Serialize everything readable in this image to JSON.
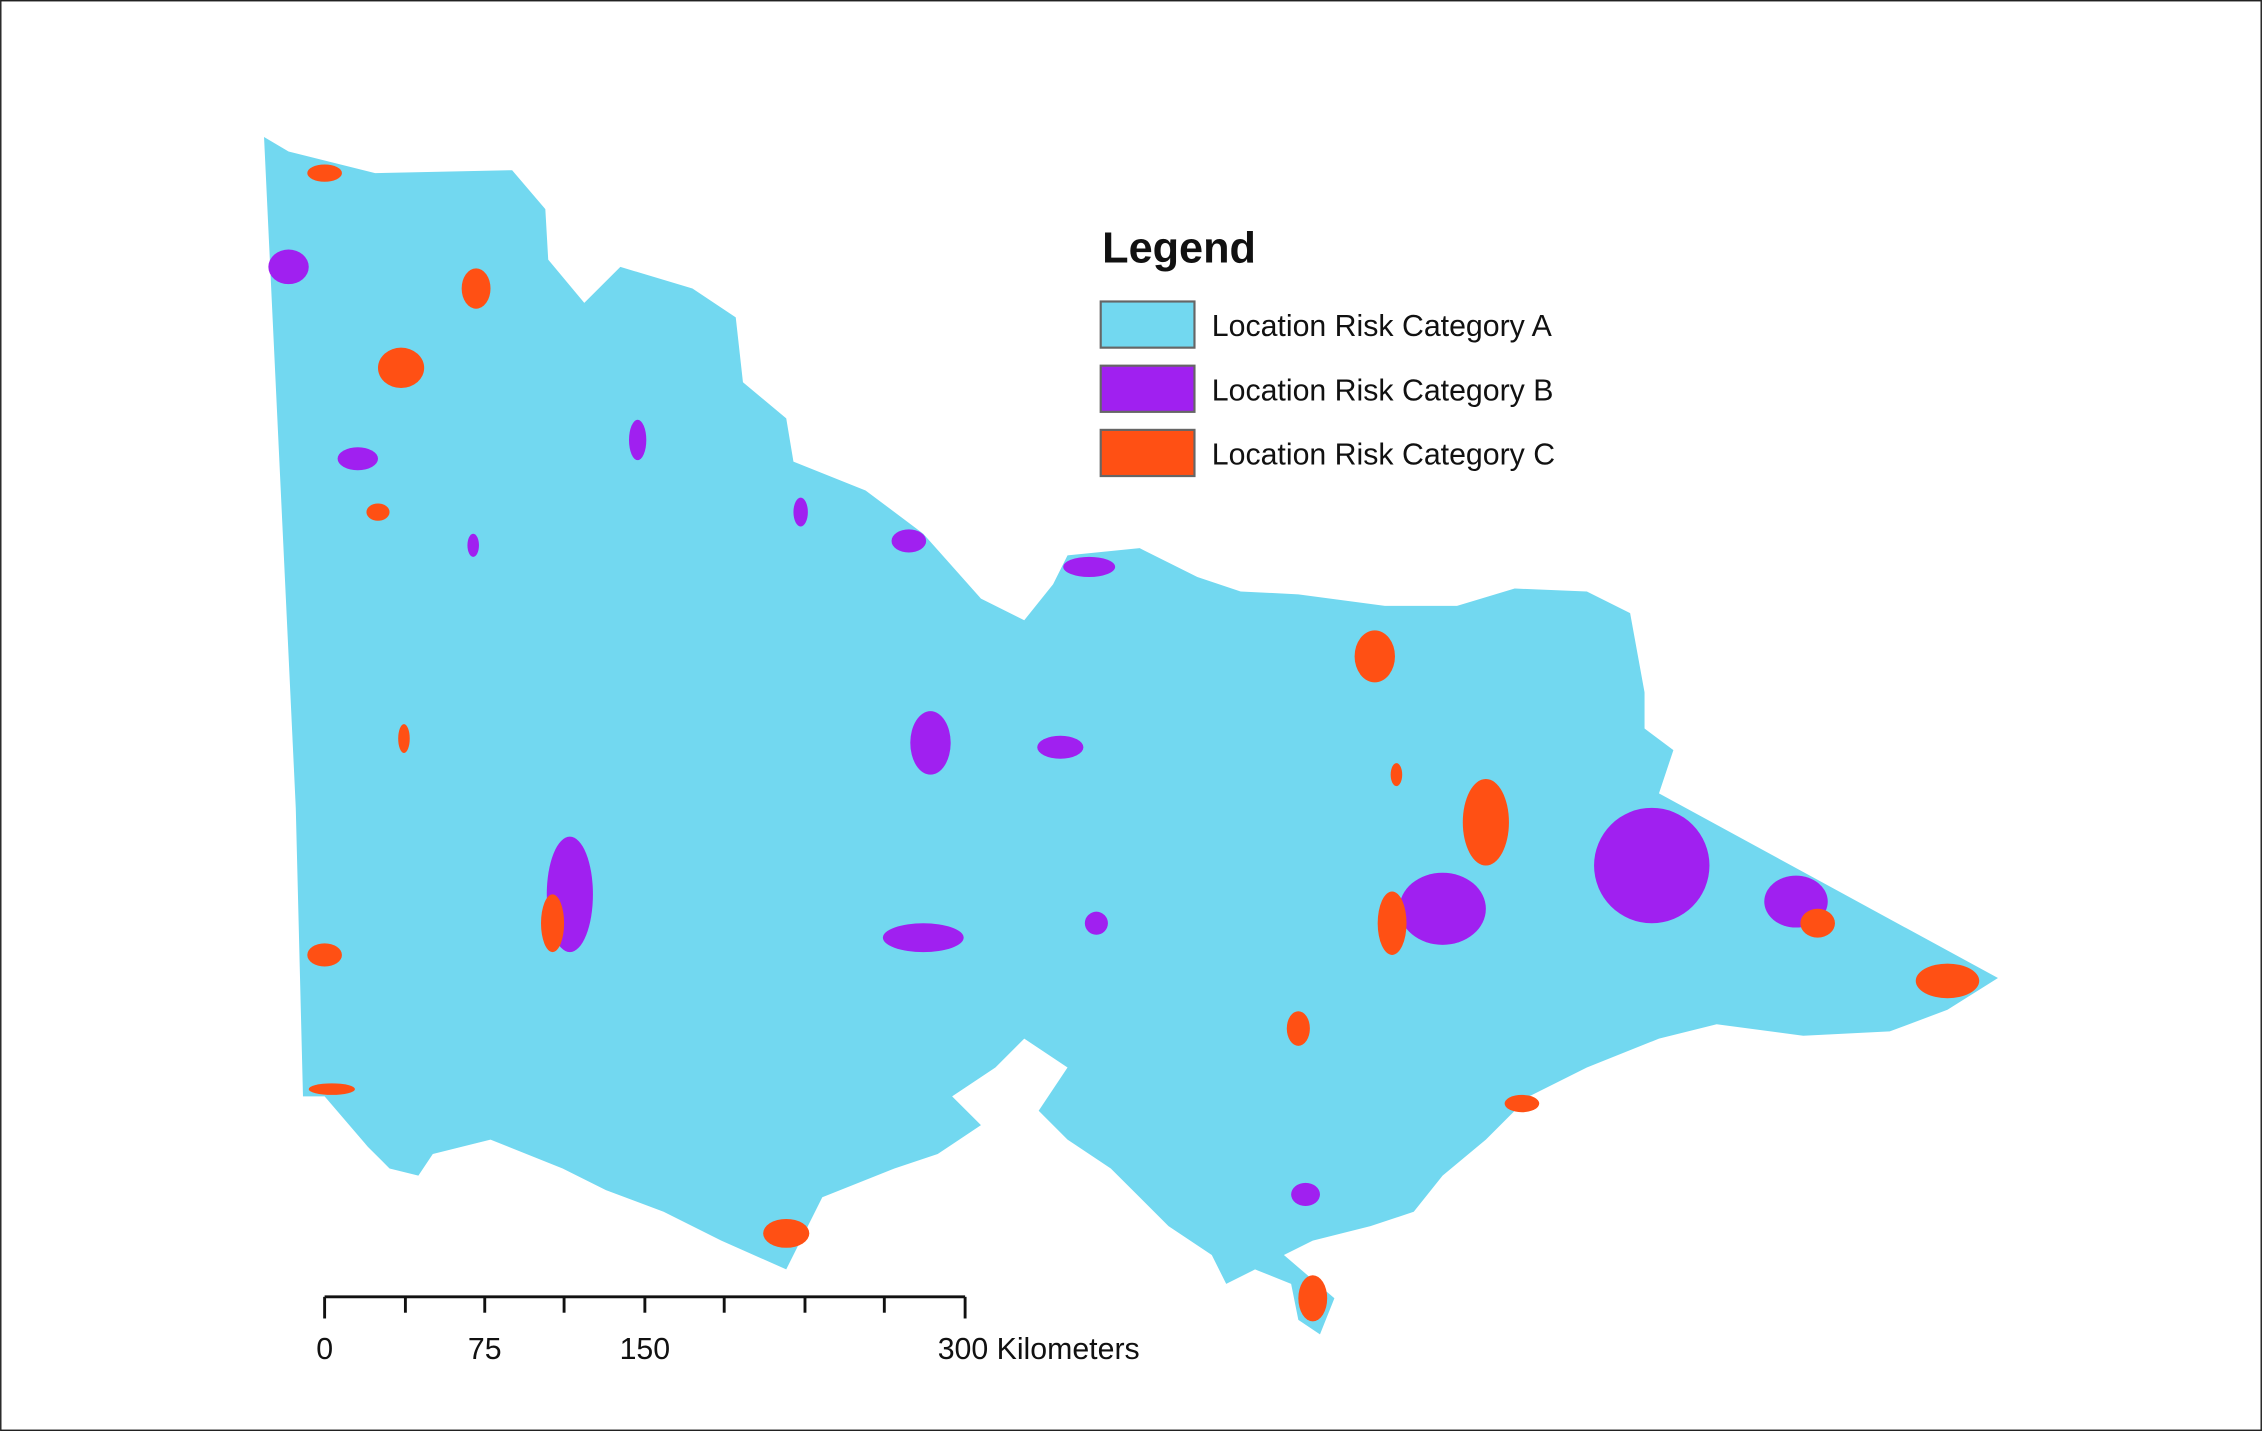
{
  "legend": {
    "title": "Legend",
    "items": [
      {
        "label": "Location Risk Category A",
        "color": "#72d8f0"
      },
      {
        "label": "Location Risk Category B",
        "color": "#a020f0"
      },
      {
        "label": "Location Risk Category C",
        "color": "#ff5014"
      }
    ]
  },
  "scale_bar": {
    "labels": [
      "0",
      "75",
      "150",
      "300 Kilometers"
    ]
  }
}
